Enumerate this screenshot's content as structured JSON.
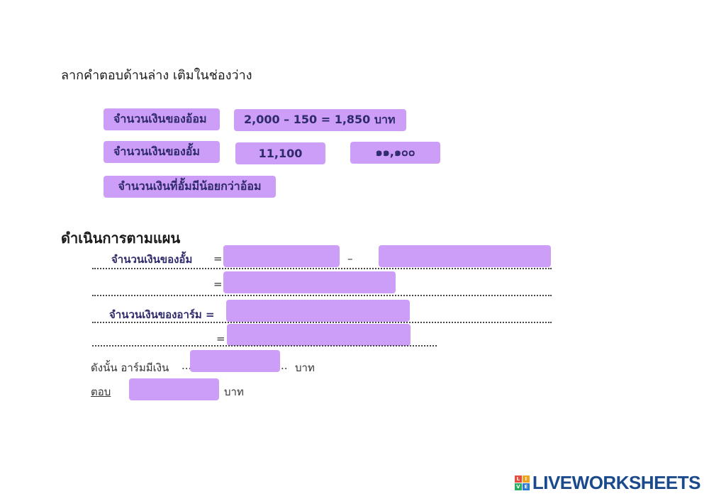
{
  "instruction": "ลากคำตอบด้านล่าง เติมในช่องว่าง",
  "chips": {
    "aom_money": "จำนวนเงินของอ้อม",
    "aom_calc": "2,000 – 150  = 1,850 บาท",
    "um_money": "จำนวนเงินของอั้ม",
    "num_arabic": "11,100",
    "num_thai": "๑๑,๑๐๐",
    "difference": "จำนวนเงินที่อั้มมีน้อยกว่าอ้อม"
  },
  "plan": {
    "heading": "ดำเนินการตามแผน",
    "row1_label": "จำนวนเงินของอั้ม",
    "eq": "=",
    "minus": "–",
    "row3_label": "จำนวนเงินของอาร์ม =",
    "conclusion_label": "ดังนั้น อาร์มมีเงิน",
    "ellipsis_left": "...",
    "ellipsis_right": "..",
    "baht": "บาท",
    "answer_label": "ตอบ"
  },
  "brand": {
    "name": "LIVEWORKSHEETS",
    "icon_letters": [
      "L",
      "I",
      "V",
      "E"
    ],
    "icon_colors": [
      "#e84c3d",
      "#f1a31b",
      "#27ae60",
      "#2b7bd6"
    ]
  }
}
